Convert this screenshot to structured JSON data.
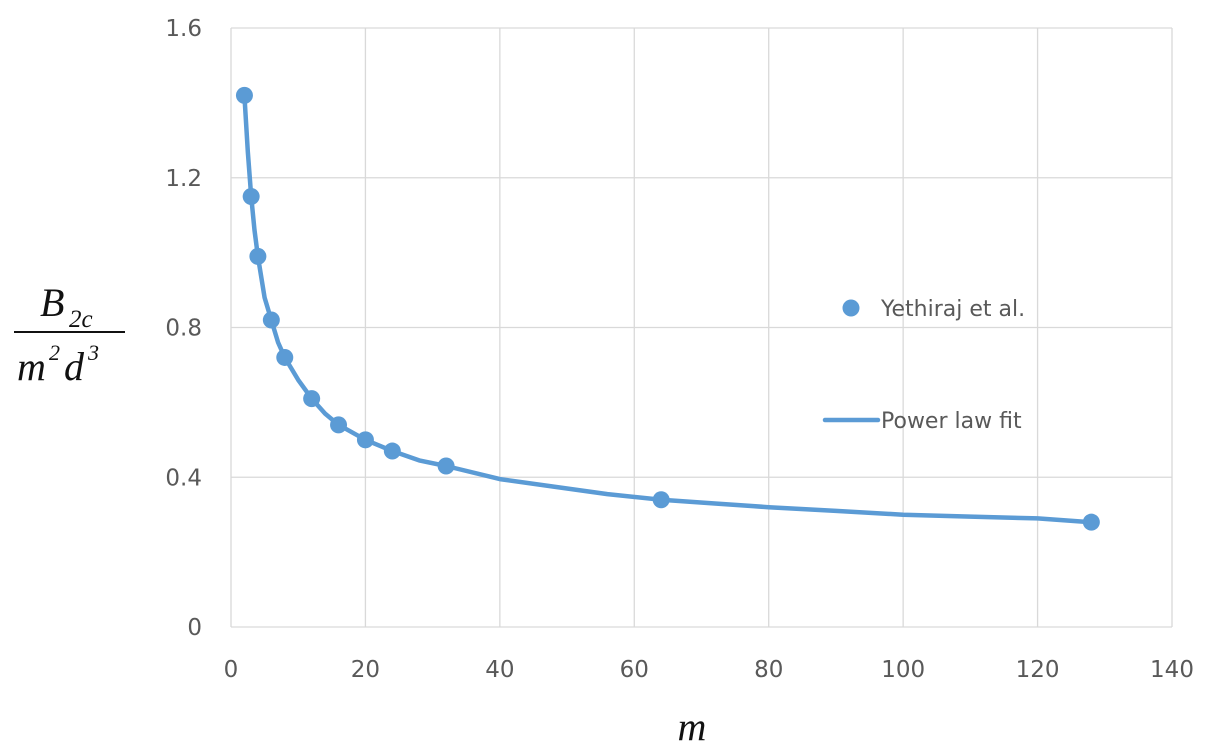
{
  "chart_data": {
    "type": "scatter",
    "title": "",
    "xlabel": "m",
    "ylabel": {
      "numerator": "B",
      "numerator_sub": "2c",
      "denominator_base1": "m",
      "denominator_sup1": "2",
      "denominator_base2": "d",
      "denominator_sup2": "3"
    },
    "xlim": [
      0,
      140
    ],
    "ylim": [
      0,
      1.6
    ],
    "x_ticks": [
      0,
      20,
      40,
      60,
      80,
      100,
      120,
      140
    ],
    "y_ticks": [
      0,
      0.4,
      0.8,
      1.2,
      1.6
    ],
    "x_tick_labels": [
      "0",
      "20",
      "40",
      "60",
      "80",
      "100",
      "120",
      "140"
    ],
    "y_tick_labels": [
      "0",
      "0.4",
      "0.8",
      "1.2",
      "1.6"
    ],
    "grid": true,
    "legend_position": "right",
    "series": [
      {
        "name": "Yethiraj et al.",
        "kind": "markers",
        "color": "#5b9bd5",
        "x": [
          2,
          3,
          4,
          6,
          8,
          12,
          16,
          20,
          24,
          32,
          64,
          128
        ],
        "y": [
          1.42,
          1.15,
          0.99,
          0.82,
          0.72,
          0.61,
          0.54,
          0.5,
          0.47,
          0.43,
          0.34,
          0.28
        ]
      },
      {
        "name": "Power law fit",
        "kind": "line",
        "color": "#5b9bd5",
        "x": [
          2,
          2.5,
          3,
          3.5,
          4,
          5,
          6,
          7,
          8,
          10,
          12,
          14,
          16,
          18,
          20,
          22,
          24,
          28,
          32,
          40,
          48,
          56,
          64,
          72,
          80,
          90,
          100,
          110,
          120,
          128
        ],
        "y": [
          1.42,
          1.27,
          1.15,
          1.06,
          0.99,
          0.88,
          0.82,
          0.76,
          0.72,
          0.66,
          0.61,
          0.57,
          0.54,
          0.52,
          0.5,
          0.485,
          0.47,
          0.445,
          0.43,
          0.395,
          0.375,
          0.355,
          0.34,
          0.33,
          0.32,
          0.31,
          0.3,
          0.295,
          0.29,
          0.28
        ]
      }
    ]
  }
}
